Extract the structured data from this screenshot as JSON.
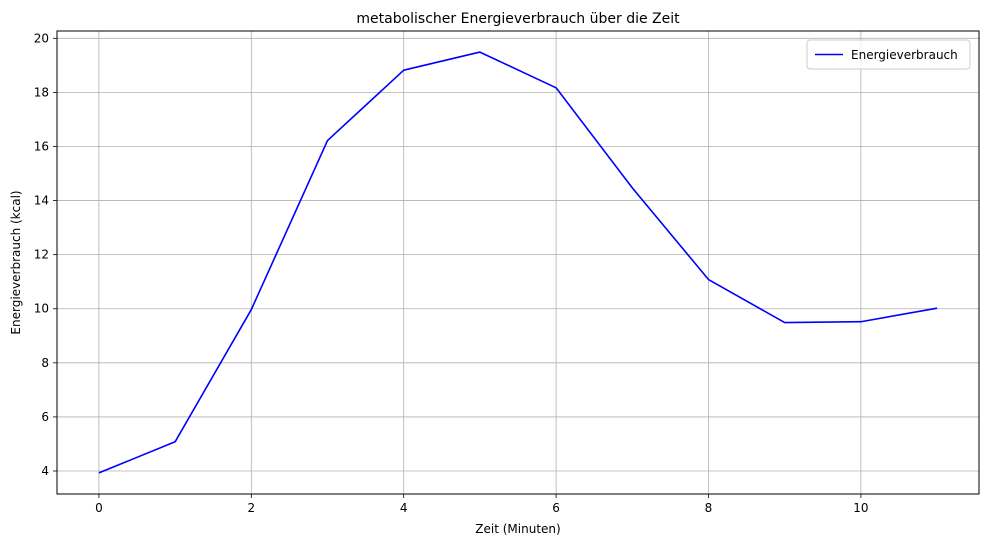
{
  "chart_data": {
    "type": "line",
    "title": "metabolischer Energieverbrauch über die Zeit",
    "xlabel": "Zeit (Minuten)",
    "ylabel": "Energieverbrauch (kcal)",
    "x": [
      0,
      1,
      2,
      3,
      4,
      5,
      6,
      7,
      8,
      9,
      10,
      11
    ],
    "series": [
      {
        "name": "Energieverbrauch",
        "color": "#0000ff",
        "values": [
          3.93,
          5.08,
          9.97,
          16.22,
          18.82,
          19.49,
          18.17,
          14.47,
          11.08,
          9.49,
          9.52,
          10.02
        ]
      }
    ],
    "xlim": [
      -0.55,
      11.55
    ],
    "ylim": [
      3.15,
      20.27
    ],
    "xticks": [
      0,
      2,
      4,
      6,
      8,
      10
    ],
    "yticks": [
      4,
      6,
      8,
      10,
      12,
      14,
      16,
      18,
      20
    ],
    "grid": true,
    "legend": "top-right",
    "grid_color": "#b0b0b0"
  }
}
